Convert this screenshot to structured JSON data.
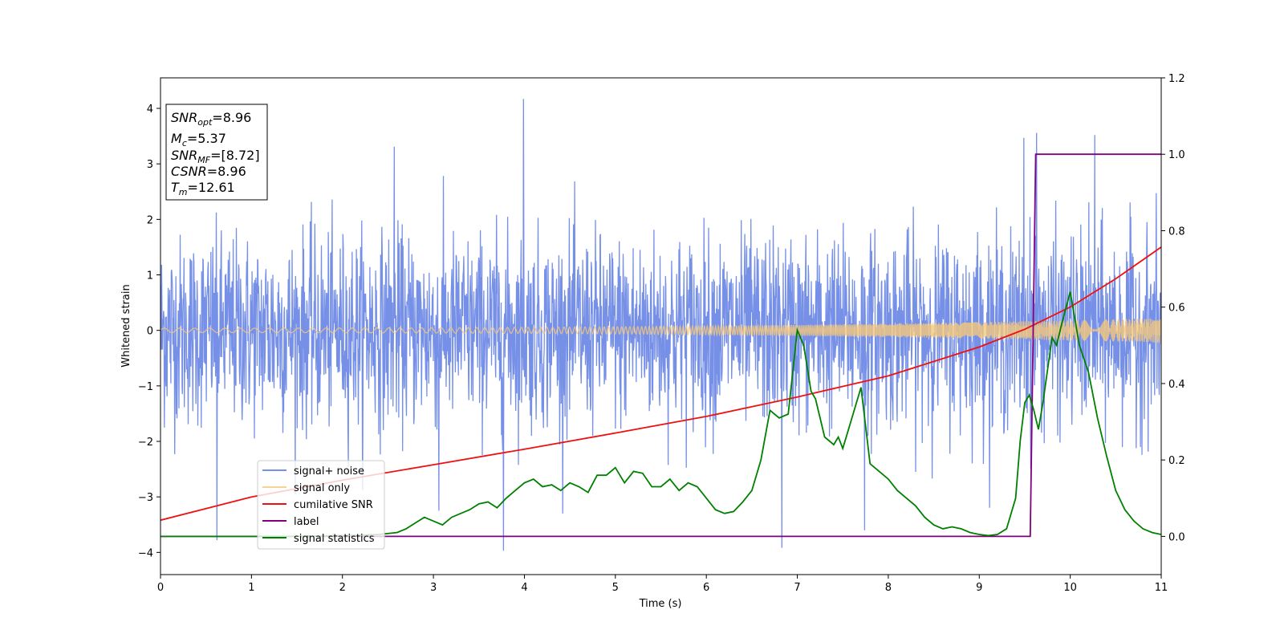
{
  "chart_data": {
    "type": "line",
    "xlabel": "Time (s)",
    "ylabel": "Whitened strain",
    "xlim": [
      0,
      11
    ],
    "ylim_left": [
      -4.4,
      4.55
    ],
    "ylim_right": [
      -0.1,
      1.2
    ],
    "x_ticks": [
      0,
      1,
      2,
      3,
      4,
      5,
      6,
      7,
      8,
      9,
      10,
      11
    ],
    "y_ticks_left": [
      -4,
      -3,
      -2,
      -1,
      0,
      1,
      2,
      3,
      4
    ],
    "y_ticks_right": [
      0.0,
      0.2,
      0.4,
      0.6,
      0.8,
      1.0,
      1.2
    ],
    "grid": false,
    "legend_position": "lower-left",
    "info_box": {
      "lines": [
        {
          "sym": "SNR",
          "sub": "opt",
          "value": "=8.96"
        },
        {
          "sym": "M",
          "sub": "c",
          "value": "=5.37"
        },
        {
          "sym": "SNR",
          "sub": "MF",
          "value": "=[8.72]"
        },
        {
          "sym": "CSNR",
          "sub": "",
          "value": "=8.96"
        },
        {
          "sym": "T",
          "sub": "m",
          "value": "=12.61"
        }
      ]
    },
    "series": [
      {
        "name": "signal+ noise",
        "axis": "left",
        "color": "#7690e8",
        "kind": "noise",
        "noise_sigma": 0.85,
        "peaks": [
          [
            0.62,
            -3.78
          ],
          [
            3.77,
            -3.97
          ],
          [
            3.99,
            4.17
          ],
          [
            6.83,
            -3.92
          ],
          [
            9.63,
            3.56
          ],
          [
            10.27,
            3.52
          ],
          [
            9.49,
            3.47
          ],
          [
            2.57,
            3.31
          ],
          [
            7.74,
            -3.6
          ],
          [
            3.06,
            -3.25
          ]
        ]
      },
      {
        "name": "signal only",
        "axis": "left",
        "color": "#f5c87a",
        "kind": "chirp",
        "amp_start": 0.04,
        "amp_end": 0.22
      },
      {
        "name": "cumilative SNR",
        "axis": "left",
        "color": "#ee1111",
        "x": [
          0,
          1,
          2,
          3,
          4,
          5,
          6,
          7,
          8,
          9,
          9.5,
          10,
          10.5,
          11
        ],
        "y": [
          -3.42,
          -3.0,
          -2.7,
          -2.42,
          -2.14,
          -1.85,
          -1.55,
          -1.2,
          -0.82,
          -0.3,
          0.02,
          0.42,
          0.93,
          1.5
        ]
      },
      {
        "name": "label",
        "axis": "right",
        "color": "#800080",
        "x": [
          0,
          9.56,
          9.62,
          11
        ],
        "y": [
          0,
          0,
          1,
          1
        ]
      },
      {
        "name": "signal statistics",
        "axis": "right",
        "color": "#008000",
        "x": [
          0,
          0.5,
          1.0,
          1.5,
          2.0,
          2.2,
          2.4,
          2.6,
          2.7,
          2.8,
          2.9,
          3.0,
          3.1,
          3.2,
          3.3,
          3.4,
          3.5,
          3.6,
          3.7,
          3.8,
          3.9,
          4.0,
          4.1,
          4.2,
          4.3,
          4.4,
          4.5,
          4.6,
          4.7,
          4.8,
          4.9,
          5.0,
          5.1,
          5.2,
          5.3,
          5.4,
          5.5,
          5.6,
          5.7,
          5.8,
          5.9,
          6.0,
          6.1,
          6.2,
          6.3,
          6.4,
          6.5,
          6.6,
          6.7,
          6.8,
          6.9,
          7.0,
          7.07,
          7.15,
          7.2,
          7.3,
          7.4,
          7.45,
          7.5,
          7.6,
          7.7,
          7.8,
          7.9,
          8.0,
          8.1,
          8.2,
          8.3,
          8.4,
          8.5,
          8.6,
          8.7,
          8.8,
          8.9,
          9.0,
          9.1,
          9.2,
          9.3,
          9.4,
          9.45,
          9.5,
          9.55,
          9.6,
          9.65,
          9.7,
          9.8,
          9.85,
          9.9,
          10.0,
          10.1,
          10.2,
          10.3,
          10.4,
          10.5,
          10.6,
          10.7,
          10.8,
          10.9,
          11.0
        ],
        "y": [
          0.0,
          0.0,
          0.0,
          0.0,
          0.002,
          0.003,
          0.005,
          0.01,
          0.02,
          0.035,
          0.05,
          0.04,
          0.03,
          0.05,
          0.06,
          0.07,
          0.085,
          0.09,
          0.075,
          0.1,
          0.12,
          0.14,
          0.15,
          0.13,
          0.135,
          0.12,
          0.14,
          0.13,
          0.115,
          0.16,
          0.16,
          0.18,
          0.14,
          0.17,
          0.165,
          0.13,
          0.13,
          0.15,
          0.12,
          0.14,
          0.13,
          0.1,
          0.07,
          0.06,
          0.065,
          0.09,
          0.12,
          0.2,
          0.33,
          0.31,
          0.32,
          0.54,
          0.5,
          0.38,
          0.36,
          0.26,
          0.24,
          0.26,
          0.23,
          0.31,
          0.39,
          0.19,
          0.17,
          0.15,
          0.12,
          0.1,
          0.08,
          0.05,
          0.03,
          0.02,
          0.025,
          0.02,
          0.01,
          0.005,
          0.002,
          0.005,
          0.02,
          0.1,
          0.25,
          0.35,
          0.37,
          0.33,
          0.28,
          0.35,
          0.52,
          0.5,
          0.55,
          0.64,
          0.5,
          0.43,
          0.31,
          0.21,
          0.12,
          0.07,
          0.04,
          0.02,
          0.01,
          0.005
        ]
      }
    ]
  }
}
